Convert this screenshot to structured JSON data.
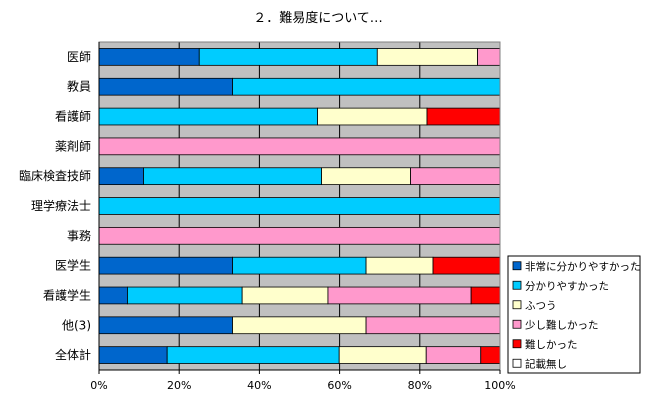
{
  "chart_data": {
    "type": "bar",
    "orientation": "horizontal",
    "stacked": "percent",
    "title": "２．難易度について…",
    "categories": [
      "医師",
      "教員",
      "看護師",
      "薬剤師",
      "臨床検査技師",
      "理学療法士",
      "事務",
      "医学生",
      "看護学生",
      "他(3)",
      "全体計"
    ],
    "series": [
      {
        "name": "非常に分かりやすかった",
        "color": "#0066CC",
        "values": [
          25,
          33.3,
          0,
          0,
          11.1,
          0,
          0,
          33.3,
          7.1,
          33.3,
          17
        ]
      },
      {
        "name": "分かりやすかった",
        "color": "#00CCFF",
        "values": [
          44.4,
          66.7,
          54.5,
          0,
          44.4,
          100,
          0,
          33.3,
          28.6,
          0,
          42.9
        ]
      },
      {
        "name": "ふつう",
        "color": "#FFFFCC",
        "values": [
          25,
          0,
          27.3,
          0,
          22.2,
          0,
          0,
          16.7,
          21.4,
          33.3,
          21.7
        ]
      },
      {
        "name": "少し難しかった",
        "color": "#FF99CC",
        "values": [
          5.6,
          0,
          0,
          100,
          22.3,
          0,
          100,
          0,
          35.7,
          33.4,
          13.6
        ]
      },
      {
        "name": "難しかった",
        "color": "#FF0000",
        "values": [
          0,
          0,
          18.2,
          0,
          0,
          0,
          0,
          16.7,
          7.2,
          0,
          4.8
        ]
      },
      {
        "name": "記載無し",
        "color": "#FFFFFF",
        "values": [
          0,
          0,
          0,
          0,
          0,
          0,
          0,
          0,
          0,
          0,
          0
        ]
      }
    ],
    "x_ticks": [
      "0%",
      "20%",
      "40%",
      "60%",
      "80%",
      "100%"
    ],
    "xlim": [
      0,
      100
    ],
    "grid": true,
    "plot_background": "#C0C0C0",
    "legend_position": "right"
  }
}
